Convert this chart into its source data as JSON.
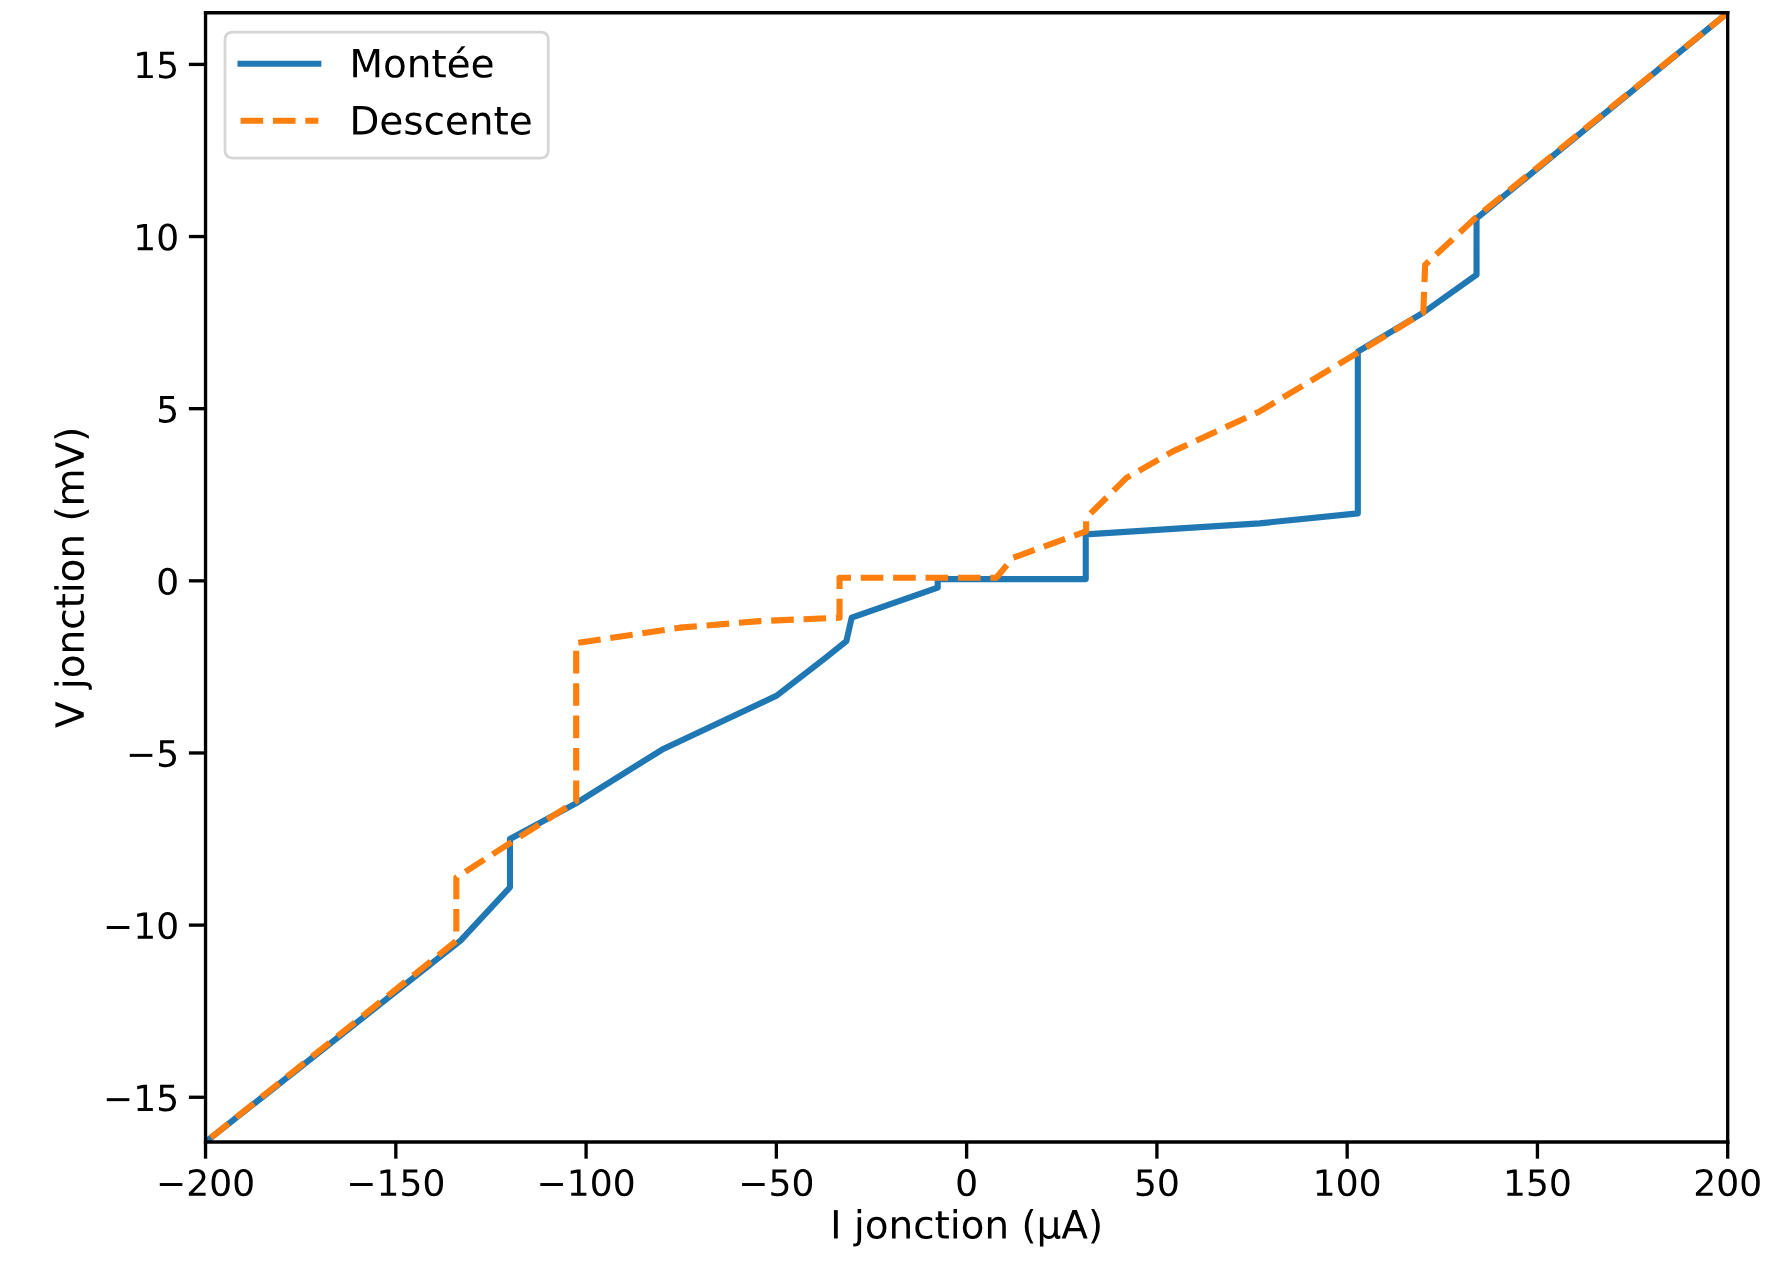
{
  "chart_data": {
    "type": "line",
    "xlabel": "I jonction (μA)",
    "ylabel": "V jonction (mV)",
    "xlim": [
      -200,
      200
    ],
    "ylim": [
      -16.3,
      16.5
    ],
    "xticks": [
      {
        "value": -200,
        "label": "−200"
      },
      {
        "value": -150,
        "label": "−150"
      },
      {
        "value": -100,
        "label": "−100"
      },
      {
        "value": -50,
        "label": "−50"
      },
      0,
      50,
      100,
      150,
      200
    ],
    "yticks": [
      {
        "value": -15,
        "label": "−15"
      },
      {
        "value": -10,
        "label": "−10"
      },
      {
        "value": -5,
        "label": "−5"
      },
      0,
      5,
      10,
      15
    ],
    "legend": "top left",
    "grid": false,
    "series": [
      {
        "name": "Montée",
        "color": "#1f77b4",
        "line_style": "solid",
        "x": [
          -200,
          -133,
          -120,
          -120,
          -102.8,
          -80,
          -50,
          -37,
          -31.6,
          -30.2,
          -7.6,
          -7.6,
          31.3,
          31.3,
          77,
          102.8,
          102.8,
          120,
          134,
          134,
          200
        ],
        "values": [
          -16.3,
          -10.45,
          -8.9,
          -7.5,
          -6.47,
          -4.9,
          -3.34,
          -2.23,
          -1.75,
          -1.07,
          -0.2,
          0.05,
          0.05,
          1.35,
          1.67,
          1.96,
          6.66,
          7.79,
          8.89,
          10.53,
          16.5
        ]
      },
      {
        "name": "Descente",
        "color": "#ff7f0e",
        "line_style": "dashed",
        "x": [
          200,
          134,
          120.5,
          120,
          103.3,
          77,
          54.2,
          42,
          31.4,
          31.4,
          12.2,
          7.8,
          -33.4,
          -33.4,
          -54.4,
          -75.4,
          -102.6,
          -102.6,
          -119.2,
          -134.1,
          -134.1,
          -200
        ],
        "values": [
          16.5,
          10.57,
          9.18,
          7.79,
          6.66,
          4.92,
          3.76,
          2.99,
          1.83,
          1.44,
          0.67,
          0.09,
          0.09,
          -1.07,
          -1.17,
          -1.36,
          -1.81,
          -6.4,
          -7.56,
          -8.62,
          -10.46,
          -16.3
        ]
      }
    ]
  }
}
